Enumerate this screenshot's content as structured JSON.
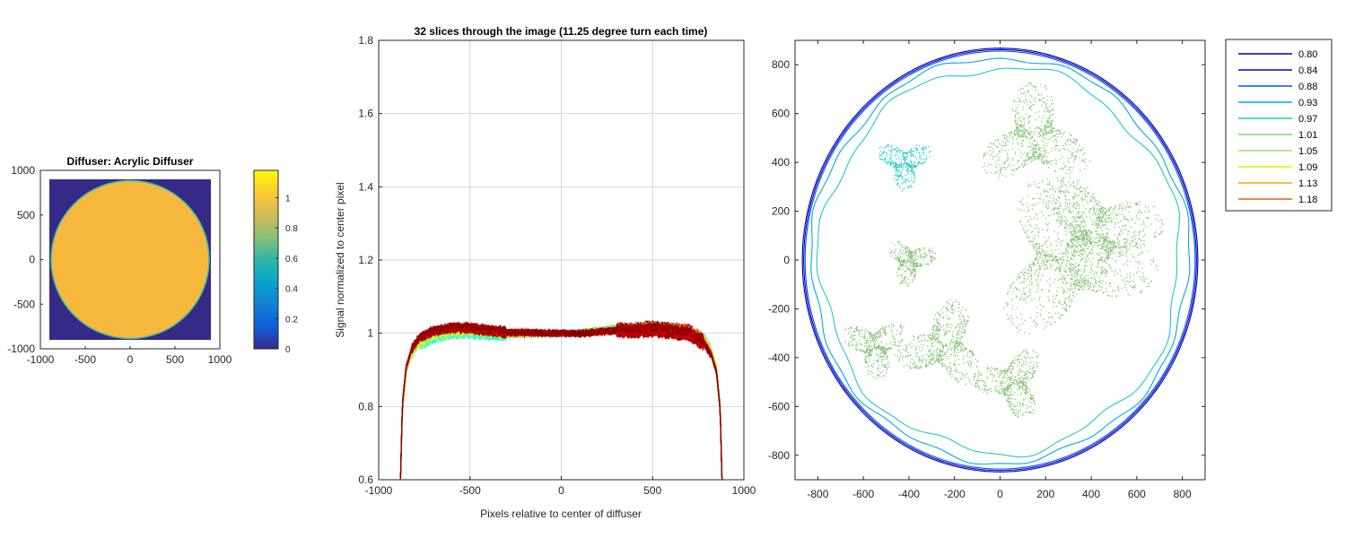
{
  "chart_data": [
    {
      "type": "heatmap",
      "title": "Diffuser: Acrylic Diffuser",
      "xlim": [
        -1000,
        1000
      ],
      "ylim": [
        -1000,
        1000
      ],
      "x_ticks": [
        -1000,
        -500,
        0,
        500,
        1000
      ],
      "y_ticks": [
        1000,
        500,
        0,
        -500,
        -1000
      ],
      "x_tick_labels": [
        "-1000",
        "-500",
        "0",
        "500",
        "1000"
      ],
      "y_tick_labels": [
        "1000",
        "500",
        "0",
        "-500",
        "-1000"
      ],
      "image_extent": [
        -900,
        900
      ],
      "diffuser_radius": 880,
      "background_value": 0,
      "diffuser_value": 1.0,
      "colorbar": {
        "ticks": [
          0,
          0.2,
          0.4,
          0.6,
          0.8,
          1
        ],
        "tick_labels": [
          "0",
          "0.2",
          "0.4",
          "0.6",
          "0.8",
          "1"
        ],
        "range": [
          0,
          1.18
        ],
        "colors": [
          "#352a87",
          "#0f5cdd",
          "#1481d6",
          "#06a4ca",
          "#2eb7a4",
          "#87bf77",
          "#d1bb59",
          "#fec832",
          "#f9fb0e"
        ]
      }
    },
    {
      "type": "line",
      "title": "32 slices through the image (11.25 degree turn each time)",
      "xlabel": "Pixels relative to center of diffuser",
      "ylabel": "Signal normalized to center pixel",
      "xlim": [
        -1000,
        1000
      ],
      "ylim": [
        0.6,
        1.8
      ],
      "grid": true,
      "x_ticks": [
        -1000,
        -500,
        0,
        500,
        1000
      ],
      "y_ticks": [
        0.6,
        0.8,
        1,
        1.2,
        1.4,
        1.6,
        1.8
      ],
      "x_tick_labels": [
        "-1000",
        "-500",
        "0",
        "500",
        "1000"
      ],
      "y_tick_labels": [
        "0.6",
        "0.8",
        "1",
        "1.2",
        "1.4",
        "1.6",
        "1.8"
      ],
      "num_series": 32,
      "edge_extent": 880,
      "profile_shape": {
        "x": [
          -880,
          -870,
          -850,
          -820,
          -780,
          -700,
          -600,
          -500,
          -400,
          -300,
          -200,
          -100,
          0,
          100,
          200,
          300,
          400,
          500,
          600,
          700,
          780,
          820,
          850,
          870,
          880
        ],
        "y": [
          0.6,
          0.8,
          0.9,
          0.95,
          0.98,
          1.0,
          1.01,
          1.01,
          1.005,
          1.0,
          1.0,
          1.0,
          1.0,
          1.0,
          1.005,
          1.01,
          1.01,
          1.015,
          1.01,
          1.005,
          0.98,
          0.95,
          0.9,
          0.8,
          0.6
        ]
      },
      "series_colors": [
        "#00007f",
        "#0000b2",
        "#0000e5",
        "#001aff",
        "#004dff",
        "#0080ff",
        "#00b2ff",
        "#00e5ff",
        "#1affe5",
        "#4dffb2",
        "#80ff80",
        "#b2ff4d",
        "#e5ff1a",
        "#ffe500",
        "#ffb200",
        "#ff8000",
        "#ff4d00",
        "#ff1a00",
        "#e50000",
        "#b20000",
        "#7f0000",
        "#990000",
        "#b30000",
        "#cc0000",
        "#8c0000",
        "#a30000",
        "#bd0000",
        "#d60000",
        "#850000",
        "#9e0000",
        "#b80000",
        "#7f0000"
      ]
    },
    {
      "type": "contour",
      "xlim": [
        -900,
        900
      ],
      "ylim": [
        -900,
        900
      ],
      "x_ticks": [
        -800,
        -600,
        -400,
        -200,
        0,
        200,
        400,
        600,
        800
      ],
      "y_ticks": [
        800,
        600,
        400,
        200,
        0,
        -200,
        -400,
        -600,
        -800
      ],
      "x_tick_labels": [
        "-800",
        "-600",
        "-400",
        "-200",
        "0",
        "200",
        "400",
        "600",
        "800"
      ],
      "y_tick_labels": [
        "800",
        "600",
        "400",
        "200",
        "0",
        "-200",
        "-400",
        "-600",
        "-800"
      ],
      "levels": [
        {
          "label": "0.80",
          "value": 0.8,
          "color": "#00008f",
          "radius": 868
        },
        {
          "label": "0.84",
          "value": 0.84,
          "color": "#0000df",
          "radius": 862
        },
        {
          "label": "0.88",
          "value": 0.88,
          "color": "#0050ff",
          "radius": 856
        },
        {
          "label": "0.93",
          "value": 0.93,
          "color": "#00a8e8",
          "radius": 830
        },
        {
          "label": "0.97",
          "value": 0.97,
          "color": "#21c9c0",
          "radius": 790
        },
        {
          "label": "1.01",
          "value": 1.01,
          "color": "#7ed66e",
          "radius": 0
        },
        {
          "label": "1.05",
          "value": 1.05,
          "color": "#a3e36b",
          "radius": 0
        },
        {
          "label": "1.09",
          "value": 1.09,
          "color": "#e8e800",
          "radius": 0
        },
        {
          "label": "1.13",
          "value": 1.13,
          "color": "#f9a800",
          "radius": 0
        },
        {
          "label": "1.18",
          "value": 1.18,
          "color": "#f25a0a",
          "radius": 0
        }
      ],
      "blobs": [
        {
          "center": [
            -420,
            400
          ],
          "size": 120,
          "color": "#21c9c0"
        },
        {
          "center": [
            420,
            120
          ],
          "size": 280,
          "color": "#7fbf6f"
        },
        {
          "center": [
            300,
            0
          ],
          "size": 360,
          "color": "#7fbf6f"
        },
        {
          "center": [
            150,
            500
          ],
          "size": 240,
          "color": "#7fbf6f"
        },
        {
          "center": [
            -250,
            -350
          ],
          "size": 200,
          "color": "#7fbf6f"
        },
        {
          "center": [
            50,
            -500
          ],
          "size": 160,
          "color": "#7fbf6f"
        },
        {
          "center": [
            -550,
            -350
          ],
          "size": 140,
          "color": "#7fbf6f"
        },
        {
          "center": [
            -400,
            0
          ],
          "size": 110,
          "color": "#7fbf6f"
        }
      ]
    }
  ]
}
